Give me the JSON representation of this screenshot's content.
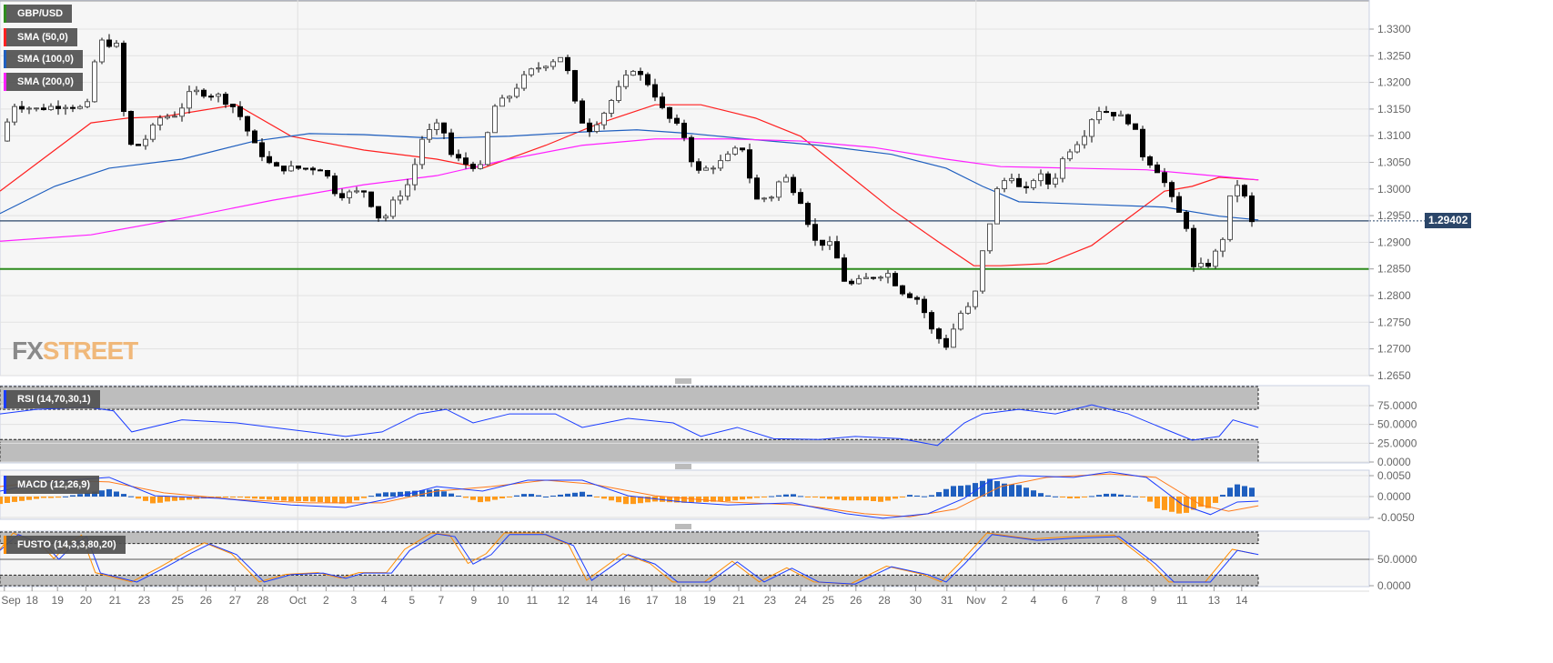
{
  "legends": {
    "symbol": {
      "label": "GBP/USD",
      "color": "#2e8b1e"
    },
    "sma50": {
      "label": "SMA (50,0)",
      "color": "#ff2020"
    },
    "sma100": {
      "label": "SMA (100,0)",
      "color": "#1f5fbf"
    },
    "sma200": {
      "label": "SMA (200,0)",
      "color": "#ff20ff"
    },
    "rsi": {
      "label": "RSI (14,70,30,1)",
      "color": "#1a3cff"
    },
    "macd": {
      "label": "MACD (12,26,9)",
      "color": "#1a3cff"
    },
    "fusto": {
      "label": "FUSTO (14,3,3,80,20)",
      "color": "#ff8c00"
    }
  },
  "logo": {
    "fx": "FX",
    "street": "STREET"
  },
  "current_price": "1.29402",
  "chart_data": [
    {
      "type": "candlestick",
      "title": "GBP/USD",
      "ylim": [
        1.265,
        1.335
      ],
      "y_ticks": [
        "1.3300",
        "1.3250",
        "1.3200",
        "1.3150",
        "1.3100",
        "1.3050",
        "1.3000",
        "1.2950",
        "1.2900",
        "1.2850",
        "1.2800",
        "1.2750",
        "1.2700",
        "1.2650"
      ],
      "x_tick_labels": [
        "Sep",
        "18",
        "19",
        "20",
        "21",
        "23",
        "25",
        "26",
        "27",
        "28",
        "Oct",
        "2",
        "3",
        "4",
        "5",
        "7",
        "9",
        "10",
        "11",
        "12",
        "14",
        "16",
        "17",
        "18",
        "19",
        "21",
        "23",
        "24",
        "25",
        "26",
        "28",
        "30",
        "31",
        "Nov",
        "2",
        "4",
        "6",
        "7",
        "8",
        "9",
        "11",
        "13",
        "14"
      ],
      "x_tick_bars": [
        0.6,
        4.4,
        7.9,
        11.8,
        15.8,
        19.8,
        24.4,
        28.3,
        32.3,
        36.1,
        40.9,
        44.8,
        48.6,
        52.8,
        56.6,
        60.6,
        65.1,
        69.1,
        73.1,
        77.4,
        81.3,
        85.8,
        89.6,
        93.5,
        97.5,
        101.5,
        105.8,
        110,
        113.8,
        117.6,
        121.5,
        125.8,
        130.1,
        134.1,
        138,
        142,
        146.3,
        150.8,
        154.5,
        158.5,
        162.4,
        166.8,
        170.6
      ],
      "close_path": [
        [
          0,
          1.309
        ],
        [
          1.9,
          1.3158
        ],
        [
          5,
          1.315
        ],
        [
          8.8,
          1.3158
        ],
        [
          11.9,
          1.315
        ],
        [
          13.5,
          1.3278
        ],
        [
          16,
          1.3269
        ],
        [
          17.5,
          1.3082
        ],
        [
          19.4,
          1.3082
        ],
        [
          21.9,
          1.3133
        ],
        [
          24.4,
          1.3141
        ],
        [
          26.3,
          1.3184
        ],
        [
          30,
          1.3175
        ],
        [
          32.5,
          1.315
        ],
        [
          35,
          1.3082
        ],
        [
          37.5,
          1.3039
        ],
        [
          41.3,
          1.3039
        ],
        [
          44.4,
          1.3039
        ],
        [
          46.3,
          1.2988
        ],
        [
          50,
          1.2996
        ],
        [
          52.5,
          1.2936
        ],
        [
          53.8,
          1.2971
        ],
        [
          56.3,
          1.3013
        ],
        [
          58.1,
          1.3099
        ],
        [
          60.6,
          1.3124
        ],
        [
          61.9,
          1.3065
        ],
        [
          63.8,
          1.3048
        ],
        [
          66.3,
          1.3039
        ],
        [
          67.5,
          1.315
        ],
        [
          70,
          1.3175
        ],
        [
          72.5,
          1.3218
        ],
        [
          75,
          1.3235
        ],
        [
          77.5,
          1.3252
        ],
        [
          78.8,
          1.3167
        ],
        [
          80.6,
          1.3107
        ],
        [
          82.5,
          1.3133
        ],
        [
          84.4,
          1.3175
        ],
        [
          86.9,
          1.3227
        ],
        [
          89.4,
          1.3193
        ],
        [
          91.3,
          1.3141
        ],
        [
          93.8,
          1.3107
        ],
        [
          95.6,
          1.303
        ],
        [
          98.8,
          1.3048
        ],
        [
          101.9,
          1.3082
        ],
        [
          103.8,
          1.2979
        ],
        [
          106.3,
          1.2988
        ],
        [
          107.5,
          1.303
        ],
        [
          110,
          1.2979
        ],
        [
          111.9,
          1.2902
        ],
        [
          114.4,
          1.2894
        ],
        [
          116.3,
          1.2817
        ],
        [
          119.4,
          1.2834
        ],
        [
          121.9,
          1.2843
        ],
        [
          123.8,
          1.2809
        ],
        [
          126.3,
          1.2792
        ],
        [
          128.1,
          1.2732
        ],
        [
          130,
          1.2706
        ],
        [
          131.9,
          1.2766
        ],
        [
          133.8,
          1.2783
        ],
        [
          134.4,
          1.2851
        ],
        [
          135.6,
          1.2911
        ],
        [
          136.9,
          1.2996
        ],
        [
          138.8,
          1.303
        ],
        [
          140.6,
          1.2988
        ],
        [
          142.5,
          1.303
        ],
        [
          144.4,
          1.3005
        ],
        [
          146.3,
          1.3065
        ],
        [
          148.8,
          1.3099
        ],
        [
          150.6,
          1.315
        ],
        [
          153.1,
          1.3141
        ],
        [
          155.6,
          1.3124
        ],
        [
          156.9,
          1.3065
        ],
        [
          159.4,
          1.303
        ],
        [
          161.3,
          1.2971
        ],
        [
          163.1,
          1.2928
        ],
        [
          164,
          1.2851
        ],
        [
          166.3,
          1.286
        ],
        [
          168.1,
          1.2911
        ],
        [
          169.4,
          1.3013
        ],
        [
          170.6,
          1.3005
        ],
        [
          171.9,
          1.2936
        ],
        [
          172.9,
          1.294
        ]
      ],
      "sma50": [
        [
          0,
          1.2996
        ],
        [
          12.5,
          1.3124
        ],
        [
          17.5,
          1.3133
        ],
        [
          22.5,
          1.3136
        ],
        [
          32.5,
          1.3158
        ],
        [
          40,
          1.3099
        ],
        [
          50,
          1.3073
        ],
        [
          60,
          1.3056
        ],
        [
          66.3,
          1.3039
        ],
        [
          75,
          1.3082
        ],
        [
          82.5,
          1.3124
        ],
        [
          90,
          1.3158
        ],
        [
          96.3,
          1.3158
        ],
        [
          103.8,
          1.3133
        ],
        [
          110,
          1.3099
        ],
        [
          116.3,
          1.303
        ],
        [
          122.5,
          1.2962
        ],
        [
          128.8,
          1.2902
        ],
        [
          133.8,
          1.2856
        ],
        [
          137.5,
          1.2856
        ],
        [
          143.8,
          1.286
        ],
        [
          150,
          1.2894
        ],
        [
          155,
          1.2945
        ],
        [
          160,
          1.2996
        ],
        [
          163.8,
          1.3005
        ],
        [
          167.5,
          1.3022
        ],
        [
          172.9,
          1.3017
        ]
      ],
      "sma100": [
        [
          0,
          1.2954
        ],
        [
          7.5,
          1.3005
        ],
        [
          15,
          1.3039
        ],
        [
          25,
          1.3056
        ],
        [
          35,
          1.309
        ],
        [
          42.5,
          1.3104
        ],
        [
          50,
          1.3102
        ],
        [
          60,
          1.3095
        ],
        [
          70,
          1.3099
        ],
        [
          80,
          1.3107
        ],
        [
          87.5,
          1.3111
        ],
        [
          95,
          1.3104
        ],
        [
          102.5,
          1.3094
        ],
        [
          112.5,
          1.3082
        ],
        [
          122.5,
          1.3065
        ],
        [
          130,
          1.3039
        ],
        [
          135,
          1.3005
        ],
        [
          140,
          1.2976
        ],
        [
          150,
          1.2971
        ],
        [
          160,
          1.2966
        ],
        [
          167.5,
          1.2949
        ],
        [
          172.9,
          1.2942
        ]
      ],
      "sma200": [
        [
          0,
          1.2902
        ],
        [
          12.5,
          1.2914
        ],
        [
          25,
          1.2945
        ],
        [
          37.5,
          1.2979
        ],
        [
          50,
          1.3008
        ],
        [
          60,
          1.3025
        ],
        [
          70,
          1.3056
        ],
        [
          80,
          1.3082
        ],
        [
          90,
          1.3094
        ],
        [
          100,
          1.3094
        ],
        [
          110,
          1.309
        ],
        [
          120,
          1.3078
        ],
        [
          130,
          1.3056
        ],
        [
          137.5,
          1.3042
        ],
        [
          147.5,
          1.3039
        ],
        [
          157.5,
          1.3036
        ],
        [
          165,
          1.3027
        ],
        [
          172.9,
          1.3017
        ]
      ],
      "horizontal_lines": [
        {
          "value": 1.285,
          "color": "#2e8b1e"
        },
        {
          "value": 1.29402,
          "color": "#2b4669"
        }
      ]
    },
    {
      "type": "line",
      "title": "RSI (14,70,30,1)",
      "ylim": [
        0,
        100
      ],
      "bands": [
        30,
        70
      ],
      "y_ticks": [
        "75.0000",
        "50.0000",
        "25.0000",
        "0.0000"
      ],
      "values": [
        [
          0,
          64
        ],
        [
          5,
          70
        ],
        [
          11.9,
          73
        ],
        [
          15.6,
          68
        ],
        [
          18.1,
          40
        ],
        [
          25,
          56
        ],
        [
          32.5,
          52
        ],
        [
          37.5,
          46
        ],
        [
          42.5,
          40
        ],
        [
          47.5,
          34
        ],
        [
          52.5,
          40
        ],
        [
          57.5,
          64
        ],
        [
          61.3,
          70
        ],
        [
          65,
          52
        ],
        [
          70,
          64
        ],
        [
          76.3,
          64
        ],
        [
          80,
          46
        ],
        [
          86.3,
          58
        ],
        [
          92.5,
          52
        ],
        [
          96.3,
          34
        ],
        [
          101.3,
          46
        ],
        [
          106.3,
          31
        ],
        [
          112.5,
          30
        ],
        [
          117.5,
          34
        ],
        [
          123.8,
          31
        ],
        [
          128.8,
          22
        ],
        [
          132.5,
          52
        ],
        [
          135,
          64
        ],
        [
          140,
          70
        ],
        [
          145,
          64
        ],
        [
          150,
          76
        ],
        [
          155,
          64
        ],
        [
          160,
          44
        ],
        [
          163.8,
          29
        ],
        [
          167.5,
          34
        ],
        [
          169.4,
          56
        ],
        [
          172.9,
          46
        ]
      ]
    },
    {
      "type": "macd",
      "title": "MACD (12,26,9)",
      "ylim": [
        -0.0055,
        0.0065
      ],
      "y_ticks": [
        "0.0050",
        "0.0000",
        "-0.0050"
      ],
      "macd": [
        [
          0,
          0.0013
        ],
        [
          6.3,
          0.0035
        ],
        [
          15,
          0.0046
        ],
        [
          21.3,
          0.0002
        ],
        [
          30,
          -0.0004
        ],
        [
          40,
          -0.002
        ],
        [
          47.5,
          -0.0026
        ],
        [
          53.8,
          -0.0004
        ],
        [
          60,
          0.0024
        ],
        [
          66.3,
          0.0013
        ],
        [
          72.5,
          0.0039
        ],
        [
          80,
          0.0039
        ],
        [
          86.3,
          0.0002
        ],
        [
          93.8,
          -0.0013
        ],
        [
          100,
          -0.002
        ],
        [
          108.8,
          -0.0015
        ],
        [
          116.3,
          -0.0041
        ],
        [
          121.3,
          -0.0052
        ],
        [
          127.5,
          -0.0041
        ],
        [
          132.5,
          -0.0004
        ],
        [
          136.3,
          0.0041
        ],
        [
          140,
          0.005
        ],
        [
          147.5,
          0.0046
        ],
        [
          152.5,
          0.0059
        ],
        [
          157.5,
          0.0046
        ],
        [
          162.5,
          -0.002
        ],
        [
          166.3,
          -0.0043
        ],
        [
          170,
          -0.0013
        ],
        [
          172.9,
          -0.0011
        ]
      ],
      "signal": [
        [
          0,
          0.0024
        ],
        [
          7.5,
          0.0039
        ],
        [
          15,
          0.0035
        ],
        [
          22.5,
          0.0009
        ],
        [
          32.5,
          -0.0007
        ],
        [
          42.5,
          -0.0015
        ],
        [
          52.5,
          -0.0015
        ],
        [
          60,
          0.0013
        ],
        [
          67.5,
          0.0024
        ],
        [
          75,
          0.0039
        ],
        [
          81.3,
          0.003
        ],
        [
          90,
          0.0002
        ],
        [
          100,
          -0.0013
        ],
        [
          110,
          -0.002
        ],
        [
          118.8,
          -0.0041
        ],
        [
          125,
          -0.0048
        ],
        [
          131.3,
          -0.003
        ],
        [
          137.5,
          0.0024
        ],
        [
          143.8,
          0.0046
        ],
        [
          152.5,
          0.0054
        ],
        [
          158.8,
          0.0046
        ],
        [
          165,
          -0.002
        ],
        [
          168.8,
          -0.0035
        ],
        [
          172.9,
          -0.0022
        ]
      ]
    },
    {
      "type": "stochastic",
      "title": "FUSTO (14,3,3,80,20)",
      "ylim": [
        0,
        100
      ],
      "bands": [
        20,
        80
      ],
      "midline": 50,
      "y_ticks": [
        "50.0000",
        "0.0000"
      ],
      "k": [
        [
          0,
          67
        ],
        [
          2.5,
          97
        ],
        [
          6.3,
          76
        ],
        [
          8.1,
          50
        ],
        [
          10,
          76
        ],
        [
          11.9,
          93
        ],
        [
          13.8,
          24
        ],
        [
          18.8,
          7
        ],
        [
          22.5,
          33
        ],
        [
          26.3,
          62
        ],
        [
          28.8,
          79
        ],
        [
          32.5,
          59
        ],
        [
          36.3,
          7
        ],
        [
          40,
          21
        ],
        [
          44.4,
          24
        ],
        [
          47.5,
          14
        ],
        [
          50,
          24
        ],
        [
          53.8,
          24
        ],
        [
          56.3,
          67
        ],
        [
          60,
          98
        ],
        [
          62.5,
          93
        ],
        [
          65,
          41
        ],
        [
          67.5,
          59
        ],
        [
          70,
          97
        ],
        [
          75,
          97
        ],
        [
          78.8,
          76
        ],
        [
          81.3,
          10
        ],
        [
          86.3,
          59
        ],
        [
          90,
          41
        ],
        [
          93.1,
          7
        ],
        [
          97.5,
          7
        ],
        [
          101.3,
          45
        ],
        [
          105,
          7
        ],
        [
          108.8,
          33
        ],
        [
          112.5,
          7
        ],
        [
          117.5,
          3
        ],
        [
          122.5,
          36
        ],
        [
          127.5,
          21
        ],
        [
          130,
          7
        ],
        [
          132.5,
          41
        ],
        [
          136.3,
          97
        ],
        [
          142.5,
          86
        ],
        [
          147.5,
          90
        ],
        [
          153.8,
          93
        ],
        [
          158.8,
          41
        ],
        [
          161.3,
          7
        ],
        [
          166.3,
          7
        ],
        [
          170,
          67
        ],
        [
          172.9,
          59
        ]
      ]
    }
  ]
}
